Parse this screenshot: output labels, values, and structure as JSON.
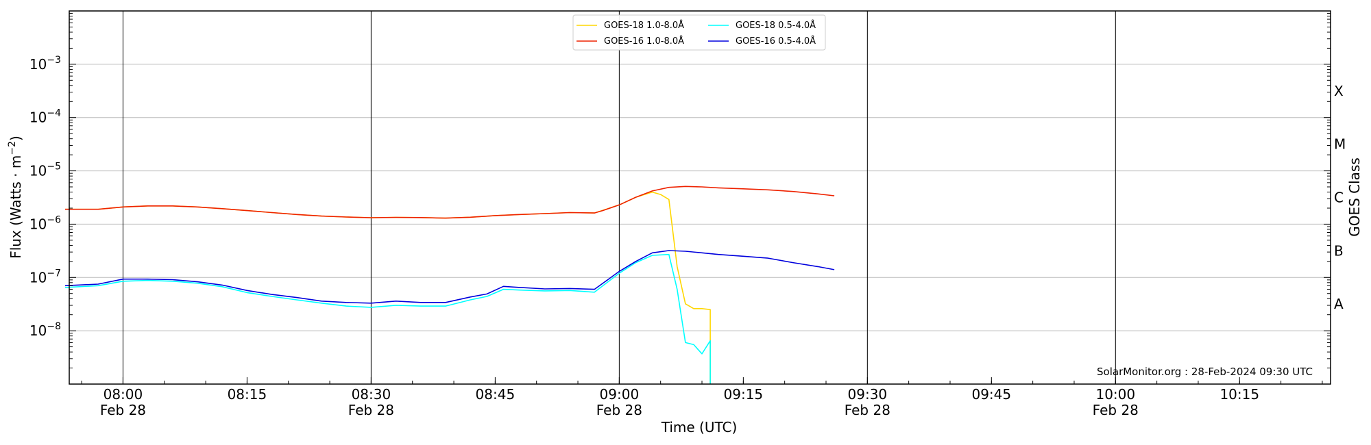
{
  "chart_data": {
    "type": "line",
    "title": "",
    "xlabel": "Time (UTC)",
    "ylabel": "Flux (Watts · m",
    "ylabel_exponent": "−2",
    "ylabel_close": ")",
    "right_label": "GOES Class",
    "y_scale": "log",
    "ylim": [
      1e-09,
      0.01
    ],
    "xlim": [
      "07:53:30",
      "10:26:00"
    ],
    "date": "Feb 28",
    "y_ticks": [
      {
        "value": 1e-08,
        "base": "10",
        "exp": "−8"
      },
      {
        "value": 1e-07,
        "base": "10",
        "exp": "−7"
      },
      {
        "value": 1e-06,
        "base": "10",
        "exp": "−6"
      },
      {
        "value": 1e-05,
        "base": "10",
        "exp": "−5"
      },
      {
        "value": 0.0001,
        "base": "10",
        "exp": "−4"
      },
      {
        "value": 0.001,
        "base": "10",
        "exp": "−3"
      }
    ],
    "x_ticks": [
      {
        "time": "08:00",
        "date_label": "Feb 28",
        "major": true
      },
      {
        "time": "08:15",
        "date_label": "",
        "major": false
      },
      {
        "time": "08:30",
        "date_label": "Feb 28",
        "major": true
      },
      {
        "time": "08:45",
        "date_label": "",
        "major": false
      },
      {
        "time": "09:00",
        "date_label": "Feb 28",
        "major": true
      },
      {
        "time": "09:15",
        "date_label": "",
        "major": false
      },
      {
        "time": "09:30",
        "date_label": "Feb 28",
        "major": true
      },
      {
        "time": "09:45",
        "date_label": "",
        "major": false
      },
      {
        "time": "10:00",
        "date_label": "Feb 28",
        "major": true
      },
      {
        "time": "10:15",
        "date_label": "",
        "major": false
      }
    ],
    "goes_classes": [
      {
        "label": "A",
        "value": 3.16e-08
      },
      {
        "label": "B",
        "value": 3.16e-07
      },
      {
        "label": "C",
        "value": 3.16e-06
      },
      {
        "label": "M",
        "value": 3.16e-05
      },
      {
        "label": "X",
        "value": 0.000316
      }
    ],
    "grid": "horizontal",
    "legend_position": "top-center",
    "credit": "SolarMonitor.org : 28-Feb-2024 09:30 UTC",
    "series": [
      {
        "name": "GOES-18 1.0-8.0Å",
        "color": "#ffd700",
        "points": [
          [
            "07:53",
            "1.9e-6"
          ],
          [
            "07:57",
            "1.9e-6"
          ],
          [
            "08:00",
            "2.1e-6"
          ],
          [
            "08:03",
            "2.2e-6"
          ],
          [
            "08:06",
            "2.2e-6"
          ],
          [
            "08:09",
            "2.1e-6"
          ],
          [
            "08:12",
            "1.95e-6"
          ],
          [
            "08:15",
            "1.8e-6"
          ],
          [
            "08:18",
            "1.65e-6"
          ],
          [
            "08:21",
            "1.52e-6"
          ],
          [
            "08:24",
            "1.42e-6"
          ],
          [
            "08:27",
            "1.36e-6"
          ],
          [
            "08:30",
            "1.32e-6"
          ],
          [
            "08:33",
            "1.34e-6"
          ],
          [
            "08:36",
            "1.33e-6"
          ],
          [
            "08:39",
            "1.3e-6"
          ],
          [
            "08:42",
            "1.35e-6"
          ],
          [
            "08:45",
            "1.45e-6"
          ],
          [
            "08:48",
            "1.52e-6"
          ],
          [
            "08:51",
            "1.58e-6"
          ],
          [
            "08:54",
            "1.65e-6"
          ],
          [
            "08:57",
            "1.62e-6"
          ],
          [
            "09:00",
            "2.3e-6"
          ],
          [
            "09:02",
            "3.2e-6"
          ],
          [
            "09:04",
            "4.0e-6"
          ],
          [
            "09:05",
            "3.6e-6"
          ],
          [
            "09:06",
            "2.9e-6"
          ],
          [
            "09:07",
            "1.6e-7"
          ],
          [
            "09:08",
            "3.2e-8"
          ],
          [
            "09:09",
            "2.6e-8"
          ],
          [
            "09:10",
            "2.6e-8"
          ],
          [
            "09:11",
            "2.5e-8"
          ],
          [
            "09:11",
            "1.0e-9"
          ]
        ]
      },
      {
        "name": "GOES-16 1.0-8.0Å",
        "color": "#ee2200",
        "points": [
          [
            "07:53",
            "1.9e-6"
          ],
          [
            "07:57",
            "1.9e-6"
          ],
          [
            "08:00",
            "2.1e-6"
          ],
          [
            "08:03",
            "2.2e-6"
          ],
          [
            "08:06",
            "2.2e-6"
          ],
          [
            "08:09",
            "2.1e-6"
          ],
          [
            "08:12",
            "1.95e-6"
          ],
          [
            "08:15",
            "1.8e-6"
          ],
          [
            "08:18",
            "1.65e-6"
          ],
          [
            "08:21",
            "1.52e-6"
          ],
          [
            "08:24",
            "1.42e-6"
          ],
          [
            "08:27",
            "1.36e-6"
          ],
          [
            "08:30",
            "1.32e-6"
          ],
          [
            "08:33",
            "1.34e-6"
          ],
          [
            "08:36",
            "1.33e-6"
          ],
          [
            "08:39",
            "1.3e-6"
          ],
          [
            "08:42",
            "1.35e-6"
          ],
          [
            "08:45",
            "1.45e-6"
          ],
          [
            "08:48",
            "1.52e-6"
          ],
          [
            "08:51",
            "1.58e-6"
          ],
          [
            "08:54",
            "1.65e-6"
          ],
          [
            "08:57",
            "1.62e-6"
          ],
          [
            "08:58",
            "1.8e-6"
          ],
          [
            "09:00",
            "2.3e-6"
          ],
          [
            "09:02",
            "3.2e-6"
          ],
          [
            "09:04",
            "4.2e-6"
          ],
          [
            "09:06",
            "4.9e-6"
          ],
          [
            "09:08",
            "5.1e-6"
          ],
          [
            "09:10",
            "5.0e-6"
          ],
          [
            "09:12",
            "4.8e-6"
          ],
          [
            "09:15",
            "4.6e-6"
          ],
          [
            "09:18",
            "4.4e-6"
          ],
          [
            "09:21",
            "4.1e-6"
          ],
          [
            "09:24",
            "3.7e-6"
          ],
          [
            "09:26",
            "3.4e-6"
          ]
        ]
      },
      {
        "name": "GOES-18 0.5-4.0Å",
        "color": "#00ffff",
        "points": [
          [
            "07:53",
            "6.5e-8"
          ],
          [
            "07:57",
            "7.0e-8"
          ],
          [
            "08:00",
            "8.5e-8"
          ],
          [
            "08:03",
            "8.8e-8"
          ],
          [
            "08:06",
            "8.5e-8"
          ],
          [
            "08:09",
            "7.8e-8"
          ],
          [
            "08:12",
            "6.7e-8"
          ],
          [
            "08:15",
            "5.2e-8"
          ],
          [
            "08:18",
            "4.4e-8"
          ],
          [
            "08:21",
            "3.8e-8"
          ],
          [
            "08:24",
            "3.3e-8"
          ],
          [
            "08:27",
            "2.9e-8"
          ],
          [
            "08:30",
            "2.75e-8"
          ],
          [
            "08:33",
            "3.0e-8"
          ],
          [
            "08:36",
            "2.9e-8"
          ],
          [
            "08:39",
            "2.9e-8"
          ],
          [
            "08:42",
            "3.8e-8"
          ],
          [
            "08:44",
            "4.4e-8"
          ],
          [
            "08:46",
            "6.0e-8"
          ],
          [
            "08:48",
            "5.8e-8"
          ],
          [
            "08:51",
            "5.6e-8"
          ],
          [
            "08:54",
            "5.7e-8"
          ],
          [
            "08:57",
            "5.3e-8"
          ],
          [
            "09:00",
            "1.2e-7"
          ],
          [
            "09:02",
            "1.9e-7"
          ],
          [
            "09:04",
            "2.6e-7"
          ],
          [
            "09:06",
            "2.7e-7"
          ],
          [
            "09:07",
            "6.0e-8"
          ],
          [
            "09:08",
            "6.0e-9"
          ],
          [
            "09:09",
            "5.5e-9"
          ],
          [
            "09:10",
            "3.7e-9"
          ],
          [
            "09:11",
            "6.5e-9"
          ],
          [
            "09:11",
            "1.0e-9"
          ]
        ]
      },
      {
        "name": "GOES-16 0.5-4.0Å",
        "color": "#0000dd",
        "points": [
          [
            "07:53",
            "7.0e-8"
          ],
          [
            "07:57",
            "7.5e-8"
          ],
          [
            "08:00",
            "9.3e-8"
          ],
          [
            "08:03",
            "9.3e-8"
          ],
          [
            "08:06",
            "9.1e-8"
          ],
          [
            "08:09",
            "8.3e-8"
          ],
          [
            "08:12",
            "7.2e-8"
          ],
          [
            "08:15",
            "5.7e-8"
          ],
          [
            "08:18",
            "4.8e-8"
          ],
          [
            "08:21",
            "4.2e-8"
          ],
          [
            "08:24",
            "3.6e-8"
          ],
          [
            "08:27",
            "3.4e-8"
          ],
          [
            "08:30",
            "3.3e-8"
          ],
          [
            "08:33",
            "3.6e-8"
          ],
          [
            "08:36",
            "3.4e-8"
          ],
          [
            "08:39",
            "3.4e-8"
          ],
          [
            "08:42",
            "4.3e-8"
          ],
          [
            "08:44",
            "4.9e-8"
          ],
          [
            "08:46",
            "6.8e-8"
          ],
          [
            "08:48",
            "6.5e-8"
          ],
          [
            "08:51",
            "6.1e-8"
          ],
          [
            "08:54",
            "6.2e-8"
          ],
          [
            "08:57",
            "6.0e-8"
          ],
          [
            "09:00",
            "1.3e-7"
          ],
          [
            "09:02",
            "2.0e-7"
          ],
          [
            "09:04",
            "2.9e-7"
          ],
          [
            "09:06",
            "3.2e-7"
          ],
          [
            "09:08",
            "3.1e-7"
          ],
          [
            "09:10",
            "2.9e-7"
          ],
          [
            "09:12",
            "2.7e-7"
          ],
          [
            "09:15",
            "2.5e-7"
          ],
          [
            "09:18",
            "2.3e-7"
          ],
          [
            "09:21",
            "1.9e-7"
          ],
          [
            "09:24",
            "1.6e-7"
          ],
          [
            "09:26",
            "1.4e-7"
          ]
        ]
      }
    ]
  }
}
